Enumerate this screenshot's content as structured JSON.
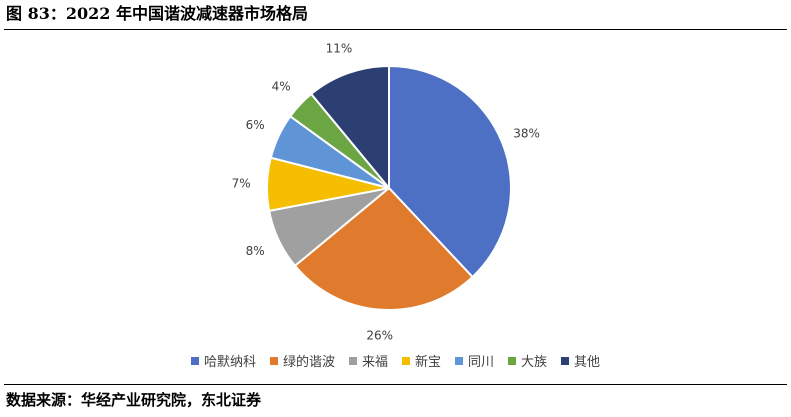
{
  "figure": {
    "title": "图 83：2022 年中国谐波减速器市场格局",
    "source": "数据来源：华经产业研究院，东北证券"
  },
  "chart_data": {
    "type": "pie",
    "categories": [
      "哈默纳科",
      "绿的谐波",
      "来福",
      "新宝",
      "同川",
      "大族",
      "其他"
    ],
    "values": [
      38,
      26,
      8,
      7,
      6,
      4,
      11
    ],
    "labels": [
      "38%",
      "26%",
      "8%",
      "7%",
      "6%",
      "4%",
      "11%"
    ],
    "colors": [
      "#4E70C4",
      "#E07B2E",
      "#A0A0A0",
      "#F5BE00",
      "#5F95D6",
      "#6BA544",
      "#2C3F72"
    ],
    "start_angle": "12 o'clock",
    "direction": "clockwise",
    "legend_position": "bottom"
  }
}
